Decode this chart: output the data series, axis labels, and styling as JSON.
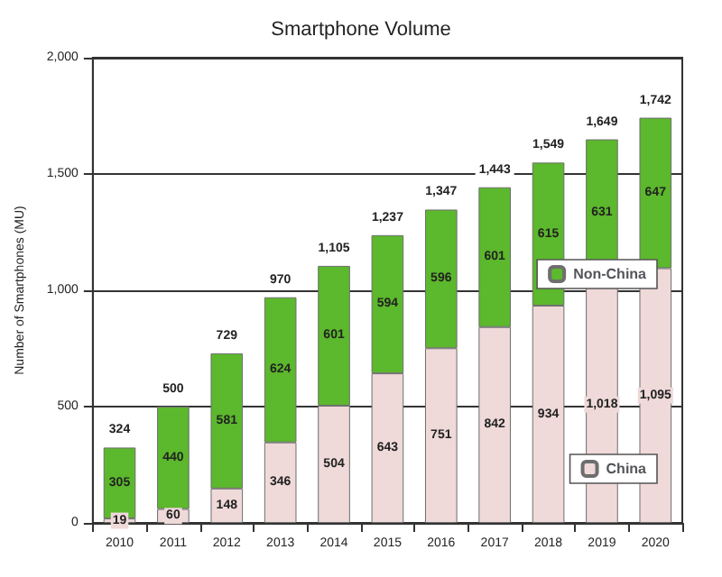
{
  "chart_data": {
    "type": "bar",
    "title": "Smartphone Volume",
    "ylabel": "Number of Smartphones (MU)",
    "categories": [
      "2010",
      "2011",
      "2012",
      "2013",
      "2014",
      "2015",
      "2016",
      "2017",
      "2018",
      "2019",
      "2020"
    ],
    "stacked": true,
    "series": [
      {
        "name": "China",
        "color": "#efd9d9",
        "values": [
          19,
          60,
          148,
          346,
          504,
          643,
          751,
          842,
          934,
          1018,
          1095
        ],
        "value_labels": [
          "19",
          "60",
          "148",
          "346",
          "504",
          "643",
          "751",
          "842",
          "934",
          "1,018",
          "1,095"
        ]
      },
      {
        "name": "Non-China",
        "color": "#5cb82c",
        "values": [
          305,
          440,
          581,
          624,
          601,
          594,
          596,
          601,
          615,
          631,
          647
        ],
        "value_labels": [
          "305",
          "440",
          "581",
          "624",
          "601",
          "594",
          "596",
          "601",
          "615",
          "631",
          "647"
        ]
      }
    ],
    "totals": [
      "324",
      "500",
      "729",
      "970",
      "1,105",
      "1,237",
      "1,347",
      "1,443",
      "1,549",
      "1,649",
      "1,742"
    ],
    "ylim": [
      0,
      2000
    ],
    "yticks": [
      {
        "value": 0,
        "label": "0"
      },
      {
        "value": 500,
        "label": "500"
      },
      {
        "value": 1000,
        "label": "1,000"
      },
      {
        "value": 1500,
        "label": "1,500"
      },
      {
        "value": 2000,
        "label": "2,000"
      }
    ],
    "grid": "y",
    "legend": "right"
  }
}
